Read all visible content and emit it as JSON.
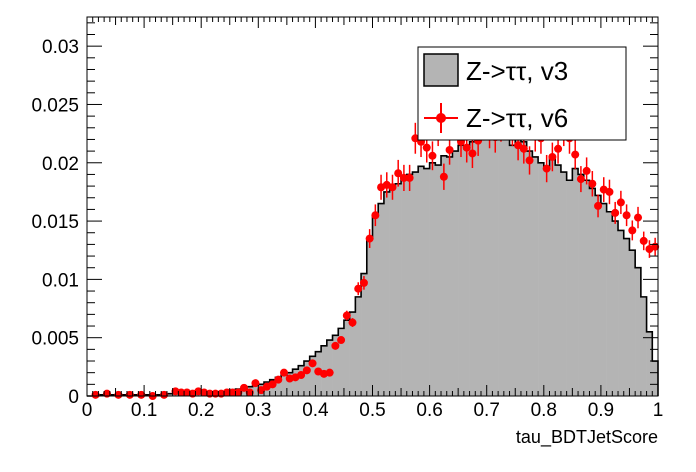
{
  "chart_data": {
    "type": "histogram",
    "title": "",
    "xlabel": "tau_BDTJetScore",
    "ylabel": "",
    "xlim": [
      0,
      1
    ],
    "ylim": [
      0,
      0.0325
    ],
    "x_ticks": [
      "0",
      "0.1",
      "0.2",
      "0.3",
      "0.4",
      "0.5",
      "0.6",
      "0.7",
      "0.8",
      "0.9",
      "1"
    ],
    "y_ticks": [
      "0",
      "0.005",
      "0.01",
      "0.015",
      "0.02",
      "0.025",
      "0.03"
    ],
    "grid": false,
    "legend_position": "top-right",
    "colors": {
      "fill": "#b4b4b4",
      "points": "#ff0000",
      "outline": "#000000"
    },
    "series": [
      {
        "name": "Z->ττ, v3",
        "style": "filled-histogram",
        "bin_width": 0.01,
        "x_start": 0,
        "values": [
          0,
          0,
          0.0001,
          0.0001,
          0.0001,
          0.0001,
          0.0001,
          0.0001,
          0.0001,
          0.0001,
          0.0001,
          0.0001,
          0.0001,
          0.0001,
          0.0002,
          0.0002,
          0.0002,
          0.0002,
          0.0002,
          0.0002,
          0.0002,
          0.0003,
          0.0003,
          0.0003,
          0.0004,
          0.0005,
          0.0006,
          0.0006,
          0.0008,
          0.0009,
          0.001,
          0.0012,
          0.0014,
          0.0016,
          0.0018,
          0.002,
          0.0023,
          0.0026,
          0.003,
          0.0034,
          0.0038,
          0.0043,
          0.0048,
          0.0052,
          0.0058,
          0.0065,
          0.0072,
          0.0085,
          0.0105,
          0.0135,
          0.0155,
          0.0165,
          0.0175,
          0.018,
          0.0182,
          0.0188,
          0.019,
          0.0192,
          0.0197,
          0.0195,
          0.02,
          0.0198,
          0.0206,
          0.0205,
          0.021,
          0.0215,
          0.0212,
          0.0218,
          0.0222,
          0.0225,
          0.022,
          0.0228,
          0.027,
          0.0235,
          0.0215,
          0.022,
          0.0218,
          0.021,
          0.0205,
          0.02,
          0.0195,
          0.0205,
          0.0198,
          0.0192,
          0.0185,
          0.0195,
          0.019,
          0.0185,
          0.0178,
          0.0172,
          0.0165,
          0.0158,
          0.015,
          0.0142,
          0.0135,
          0.0125,
          0.011,
          0.0085,
          0.0055,
          0.003
        ]
      },
      {
        "name": "Z->ττ, v6",
        "style": "points-with-error-bars",
        "x": [
          0.015,
          0.035,
          0.055,
          0.075,
          0.095,
          0.115,
          0.135,
          0.155,
          0.165,
          0.175,
          0.185,
          0.195,
          0.205,
          0.215,
          0.225,
          0.235,
          0.245,
          0.255,
          0.265,
          0.275,
          0.285,
          0.295,
          0.305,
          0.315,
          0.325,
          0.335,
          0.345,
          0.355,
          0.365,
          0.375,
          0.385,
          0.395,
          0.405,
          0.415,
          0.425,
          0.435,
          0.445,
          0.455,
          0.465,
          0.475,
          0.485,
          0.495,
          0.505,
          0.515,
          0.525,
          0.535,
          0.545,
          0.555,
          0.565,
          0.575,
          0.585,
          0.595,
          0.605,
          0.615,
          0.625,
          0.635,
          0.645,
          0.655,
          0.665,
          0.675,
          0.685,
          0.695,
          0.705,
          0.715,
          0.725,
          0.735,
          0.745,
          0.755,
          0.765,
          0.775,
          0.785,
          0.795,
          0.805,
          0.815,
          0.825,
          0.835,
          0.845,
          0.855,
          0.865,
          0.875,
          0.885,
          0.895,
          0.905,
          0.915,
          0.925,
          0.935,
          0.945,
          0.955,
          0.965,
          0.975,
          0.985,
          0.995
        ],
        "y": [
          0.0001,
          0.0002,
          0.0001,
          0.0001,
          0.0001,
          0,
          0.0001,
          0.0004,
          0.0003,
          0.0003,
          0.0002,
          0.0004,
          0.0003,
          0.0002,
          0.0002,
          0.0002,
          0.0003,
          0.0003,
          0.0003,
          0.0007,
          0.0003,
          0.0011,
          0.0005,
          0.0008,
          0.001,
          0.0014,
          0.002,
          0.0015,
          0.0016,
          0.0018,
          0.0022,
          0.0028,
          0.0021,
          0.0019,
          0.002,
          0.0043,
          0.0048,
          0.0069,
          0.0063,
          0.0092,
          0.0097,
          0.0135,
          0.0155,
          0.0179,
          0.0181,
          0.0179,
          0.0191,
          0.0187,
          0.0187,
          0.0221,
          0.0218,
          0.0213,
          0.0206,
          0.0228,
          0.0188,
          0.0211,
          0.0235,
          0.0218,
          0.0213,
          0.0208,
          0.0219,
          0.0233,
          0.0226,
          0.0222,
          0.0232,
          0.0245,
          0.0228,
          0.0215,
          0.0212,
          0.0202,
          0.0223,
          0.0221,
          0.0195,
          0.0205,
          0.0212,
          0.0228,
          0.0221,
          0.0207,
          0.0186,
          0.0193,
          0.0182,
          0.0163,
          0.0177,
          0.0175,
          0.0157,
          0.0166,
          0.0155,
          0.0142,
          0.0153,
          0.0133,
          0.0126,
          0.0128
        ]
      }
    ]
  }
}
